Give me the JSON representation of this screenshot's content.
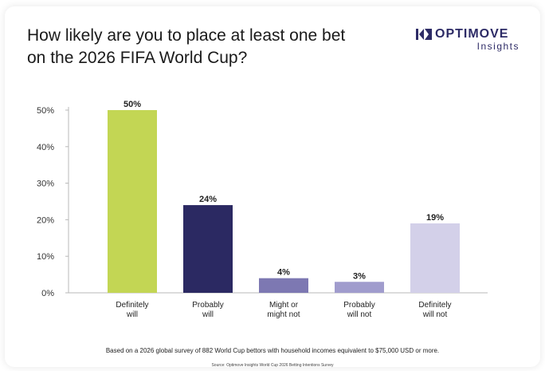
{
  "logo": {
    "wordmark": "OPTIMOVE",
    "subtitle": "Insights"
  },
  "chart_data": {
    "type": "bar",
    "title": "How likely are you to place at least one bet on the 2026 FIFA World Cup?",
    "categories": [
      [
        "Definitely",
        "will"
      ],
      [
        "Probably",
        "will"
      ],
      [
        "Might or",
        "might not"
      ],
      [
        "Probably",
        "will not"
      ],
      [
        "Definitely",
        "will not"
      ]
    ],
    "values": [
      50,
      24,
      4,
      3,
      19
    ],
    "data_labels": [
      "50%",
      "24%",
      "4%",
      "3%",
      "19%"
    ],
    "bar_colors": [
      "#c3d654",
      "#2b2962",
      "#7d78b2",
      "#a09ccd",
      "#d3d0e9"
    ],
    "yticks": [
      "0%",
      "10%",
      "20%",
      "30%",
      "40%",
      "50%"
    ],
    "ylim": [
      0,
      50
    ],
    "grid": false,
    "xlabel": "",
    "ylabel": ""
  },
  "footnote": "Based on a 2026 global survey of 882 World Cup bettors with household incomes equivalent to $75,000 USD or more.",
  "source": "Source: Optimove Insights World Cup 2026 Betting Intentions Survey"
}
